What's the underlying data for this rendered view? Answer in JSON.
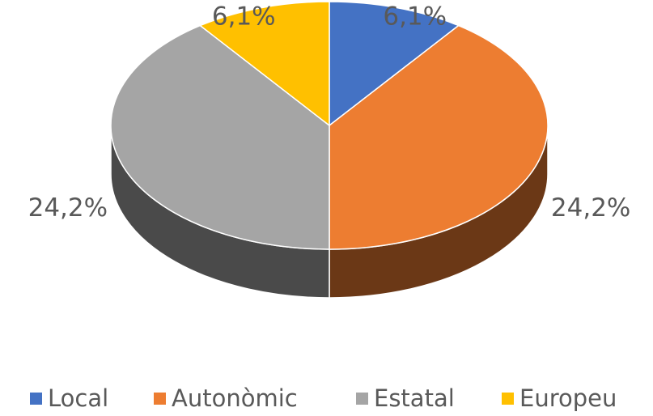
{
  "chart_data": {
    "type": "pie",
    "categories": [
      "Local",
      "Autonòmic",
      "Estatal",
      "Europeu"
    ],
    "values": [
      6.1,
      24.2,
      24.2,
      6.1
    ],
    "value_labels": [
      "6,1%",
      "24,2%",
      "24,2%",
      "6,1%"
    ],
    "colors": [
      "#4472c4",
      "#ed7d31",
      "#a5a5a5",
      "#ffc000"
    ],
    "legend": "bottom"
  }
}
